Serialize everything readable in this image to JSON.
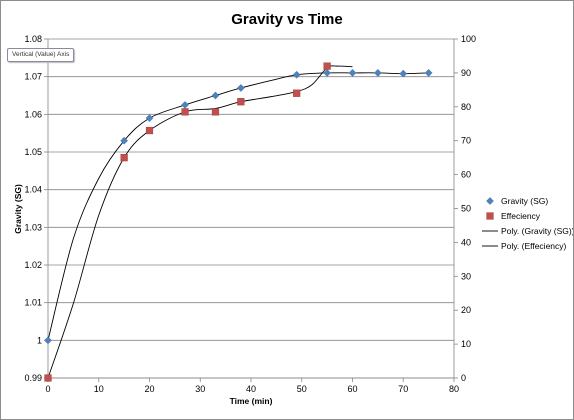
{
  "tooltip": "Vertical (Value) Axis",
  "chart_data": {
    "type": "scatter",
    "title": "Gravity vs Time",
    "xlabel": "Time (min)",
    "ylabel": "Gravity (SG)",
    "y2label": "",
    "xlim": [
      0,
      80
    ],
    "ylim": [
      0.99,
      1.08
    ],
    "y2lim": [
      0,
      100
    ],
    "x_ticks": [
      0,
      10,
      20,
      30,
      40,
      50,
      60,
      70,
      80
    ],
    "y_ticks": [
      "0.99",
      "1",
      "1.01",
      "1.02",
      "1.03",
      "1.04",
      "1.05",
      "1.06",
      "1.07",
      "1.08"
    ],
    "y2_ticks": [
      0,
      10,
      20,
      30,
      40,
      50,
      60,
      70,
      80,
      90,
      100
    ],
    "grid": "horizontal",
    "legend_position": "right",
    "series": [
      {
        "name": "Gravity (SG)",
        "axis": "left",
        "marker": "diamond",
        "color": "#4f81bd",
        "x": [
          0,
          15,
          20,
          27,
          33,
          38,
          49,
          55,
          60,
          65,
          70,
          75
        ],
        "y": [
          1.0,
          1.053,
          1.059,
          1.0625,
          1.065,
          1.067,
          1.0705,
          1.071,
          1.071,
          1.071,
          1.0708,
          1.071
        ]
      },
      {
        "name": "Effeciency",
        "axis": "right",
        "marker": "square",
        "color": "#c0504d",
        "x": [
          0,
          15,
          20,
          27,
          33,
          38,
          49,
          55
        ],
        "y": [
          0,
          65,
          73,
          78.5,
          78.5,
          81.5,
          84,
          92
        ]
      }
    ],
    "trendlines": [
      {
        "name": "Poly. (Gravity (SG))",
        "axis": "left",
        "points": [
          [
            0,
            1.0
          ],
          [
            5,
            1.027
          ],
          [
            10,
            1.043
          ],
          [
            15,
            1.053
          ],
          [
            20,
            1.059
          ],
          [
            27,
            1.0625
          ],
          [
            33,
            1.065
          ],
          [
            38,
            1.067
          ],
          [
            44,
            1.069
          ],
          [
            49,
            1.0705
          ],
          [
            55,
            1.071
          ],
          [
            60,
            1.071
          ],
          [
            65,
            1.071
          ],
          [
            70,
            1.0708
          ],
          [
            75,
            1.071
          ]
        ]
      },
      {
        "name": "Poly. (Effeciency)",
        "axis": "right",
        "points": [
          [
            0,
            0
          ],
          [
            5,
            22
          ],
          [
            10,
            48
          ],
          [
            15,
            65
          ],
          [
            20,
            73
          ],
          [
            27,
            78.5
          ],
          [
            33,
            79.5
          ],
          [
            38,
            81.5
          ],
          [
            44,
            83
          ],
          [
            49,
            84.5
          ],
          [
            52,
            86.5
          ],
          [
            55,
            91.5
          ],
          [
            57,
            92
          ],
          [
            60,
            91.8
          ]
        ]
      }
    ]
  }
}
